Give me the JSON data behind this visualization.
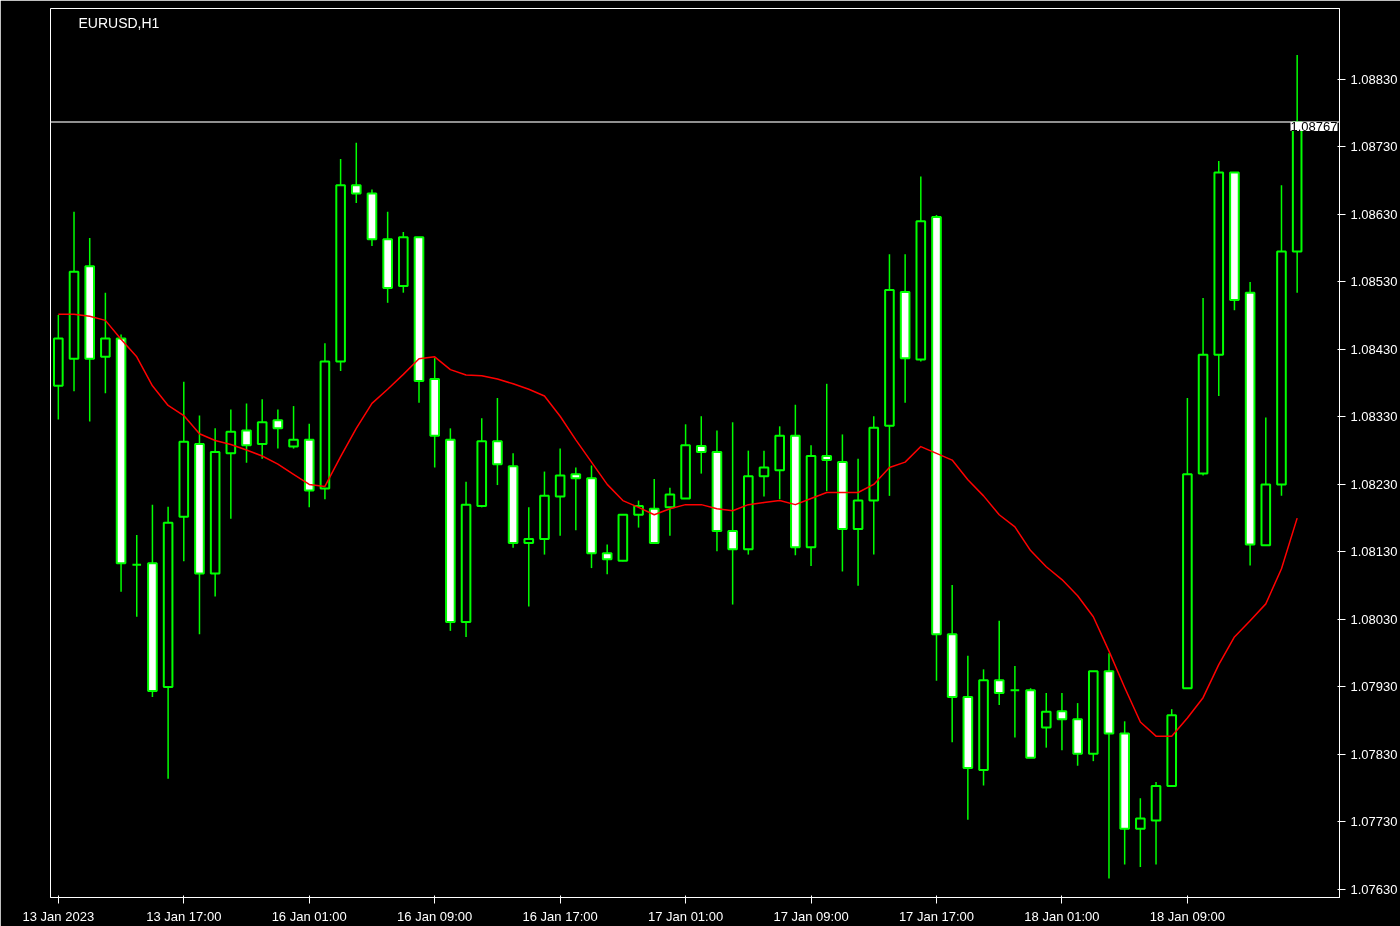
{
  "chart_data": {
    "type": "candlestick",
    "title": "EURUSD,H1",
    "categories": [
      "13 Jan 2023",
      null,
      null,
      null,
      null,
      null,
      null,
      null,
      "13 Jan 17:00",
      null,
      null,
      null,
      null,
      null,
      null,
      null,
      "16 Jan 01:00",
      null,
      null,
      null,
      null,
      null,
      null,
      null,
      "16 Jan 09:00",
      null,
      null,
      null,
      null,
      null,
      null,
      null,
      "16 Jan 17:00",
      null,
      null,
      null,
      null,
      null,
      null,
      null,
      "17 Jan 01:00",
      null,
      null,
      null,
      null,
      null,
      null,
      null,
      "17 Jan 09:00",
      null,
      null,
      null,
      null,
      null,
      null,
      null,
      "17 Jan 17:00",
      null,
      null,
      null,
      null,
      null,
      null,
      null,
      "18 Jan 01:00",
      null,
      null,
      null,
      null,
      null,
      null,
      null,
      "18 Jan 09:00",
      null,
      null,
      null,
      null,
      null,
      null,
      null
    ],
    "color": "#00ff00",
    "ohlc": [
      [
        1.08376,
        1.08481,
        1.08326,
        1.08446
      ],
      [
        1.08416,
        1.08634,
        1.08368,
        1.08545
      ],
      [
        1.08553,
        1.08595,
        1.08323,
        1.08416
      ],
      [
        1.08419,
        1.08514,
        1.08365,
        1.08446
      ],
      [
        1.08446,
        1.08452,
        1.08071,
        1.08113
      ],
      [
        1.08111,
        1.08155,
        1.08034,
        1.08111
      ],
      [
        1.08113,
        1.082,
        1.07915,
        1.07924
      ],
      [
        1.0793,
        1.08197,
        1.07794,
        1.08173
      ],
      [
        1.08182,
        1.08382,
        1.08116,
        1.08293
      ],
      [
        1.0829,
        1.08332,
        1.08008,
        1.08098
      ],
      [
        1.08098,
        1.08313,
        1.08064,
        1.08278
      ],
      [
        1.08276,
        1.08341,
        1.08179,
        1.08308
      ],
      [
        1.0831,
        1.0835,
        1.08262,
        1.08288
      ],
      [
        1.0829,
        1.08356,
        1.08268,
        1.08322
      ],
      [
        1.08325,
        1.08341,
        1.08283,
        1.08313
      ],
      [
        1.08286,
        1.08346,
        1.08283,
        1.08296
      ],
      [
        1.08296,
        1.0832,
        1.08196,
        1.08221
      ],
      [
        1.08224,
        1.08439,
        1.08208,
        1.08412
      ],
      [
        1.08412,
        1.08712,
        1.08398,
        1.08673
      ],
      [
        1.08673,
        1.08736,
        1.08647,
        1.08661
      ],
      [
        1.08661,
        1.08667,
        1.08583,
        1.08593
      ],
      [
        1.08593,
        1.08634,
        1.08499,
        1.08521
      ],
      [
        1.08524,
        1.08604,
        1.08514,
        1.08596
      ],
      [
        1.08596,
        1.08596,
        1.08351,
        1.08383
      ],
      [
        1.08386,
        1.08417,
        1.08255,
        1.08302
      ],
      [
        1.08296,
        1.08313,
        1.08013,
        1.08026
      ],
      [
        1.08026,
        1.08234,
        1.08004,
        1.082
      ],
      [
        1.08198,
        1.08328,
        1.08196,
        1.08294
      ],
      [
        1.08294,
        1.08358,
        1.08229,
        1.0826
      ],
      [
        1.08257,
        1.08276,
        1.08136,
        1.08143
      ],
      [
        1.08143,
        1.08196,
        1.08049,
        1.08149
      ],
      [
        1.08149,
        1.08249,
        1.08126,
        1.08213
      ],
      [
        1.08212,
        1.08283,
        1.08154,
        1.08243
      ],
      [
        1.08245,
        1.08255,
        1.08162,
        1.08239
      ],
      [
        1.08239,
        1.08258,
        1.08106,
        1.08128
      ],
      [
        1.08128,
        1.08141,
        1.08097,
        1.08119
      ],
      [
        1.08117,
        1.08185,
        1.08116,
        1.08185
      ],
      [
        1.08185,
        1.08206,
        1.08166,
        1.08198
      ],
      [
        1.08194,
        1.08238,
        1.08143,
        1.08143
      ],
      [
        1.08196,
        1.08225,
        1.08154,
        1.08215
      ],
      [
        1.08209,
        1.08319,
        1.08209,
        1.08288
      ],
      [
        1.08287,
        1.08331,
        1.08246,
        1.08278
      ],
      [
        1.08278,
        1.0831,
        1.08131,
        1.08161
      ],
      [
        1.08161,
        1.08322,
        1.08052,
        1.08134
      ],
      [
        1.08134,
        1.0828,
        1.08126,
        1.08242
      ],
      [
        1.08242,
        1.0828,
        1.08212,
        1.08255
      ],
      [
        1.08251,
        1.08316,
        1.08208,
        1.08302
      ],
      [
        1.08302,
        1.08348,
        1.08125,
        1.08137
      ],
      [
        1.08137,
        1.08288,
        1.08109,
        1.08272
      ],
      [
        1.08272,
        1.08379,
        1.0822,
        1.08266
      ],
      [
        1.08263,
        1.08304,
        1.08101,
        1.08164
      ],
      [
        1.08164,
        1.08268,
        1.0808,
        1.08206
      ],
      [
        1.08206,
        1.08331,
        1.08126,
        1.08314
      ],
      [
        1.08317,
        1.08571,
        1.08213,
        1.08518
      ],
      [
        1.08515,
        1.08571,
        1.08351,
        1.08417
      ],
      [
        1.08415,
        1.08686,
        1.08412,
        1.0862
      ],
      [
        1.08626,
        1.08629,
        1.07939,
        1.08008
      ],
      [
        1.08008,
        1.08081,
        1.07848,
        1.07915
      ],
      [
        1.07915,
        1.07976,
        1.07733,
        1.0781
      ],
      [
        1.07807,
        1.07956,
        1.07784,
        1.0794
      ],
      [
        1.0794,
        1.08028,
        1.07903,
        1.07921
      ],
      [
        1.07925,
        1.07961,
        1.07855,
        1.07925
      ],
      [
        1.07925,
        1.07928,
        1.07825,
        1.07825
      ],
      [
        1.0787,
        1.07921,
        1.0784,
        1.07893
      ],
      [
        1.07894,
        1.07921,
        1.07836,
        1.07882
      ],
      [
        1.07882,
        1.07906,
        1.07813,
        1.07831
      ],
      [
        1.07831,
        1.07953,
        1.0782,
        1.07953
      ],
      [
        1.07953,
        1.0798,
        1.07646,
        1.07861
      ],
      [
        1.07861,
        1.07879,
        1.07667,
        1.0772
      ],
      [
        1.0772,
        1.07765,
        1.07663,
        1.07735
      ],
      [
        1.07732,
        1.07789,
        1.07667,
        1.07783
      ],
      [
        1.07783,
        1.07897,
        1.07783,
        1.07888
      ],
      [
        1.07928,
        1.08358,
        1.07928,
        1.08245
      ],
      [
        1.08246,
        1.08506,
        1.08243,
        1.08422
      ],
      [
        1.08422,
        1.08709,
        1.08361,
        1.08692
      ],
      [
        1.08692,
        1.08692,
        1.08488,
        1.08503
      ],
      [
        1.08514,
        1.0853,
        1.0811,
        1.08141
      ],
      [
        1.0814,
        1.08329,
        1.0814,
        1.0823
      ],
      [
        1.0823,
        1.08673,
        1.08213,
        1.08575
      ],
      [
        1.08575,
        1.08866,
        1.08514,
        1.08767
      ]
    ],
    "series": [
      {
        "type": "line",
        "color": "#ff0000",
        "values": [
          1.08482,
          1.08482,
          1.08479,
          1.08473,
          1.08445,
          1.08419,
          1.08376,
          1.08347,
          1.08332,
          1.08305,
          1.08295,
          1.08289,
          1.08281,
          1.08272,
          1.0826,
          1.08245,
          1.0823,
          1.08227,
          1.08271,
          1.08313,
          1.0835,
          1.08371,
          1.08393,
          1.08416,
          1.08419,
          1.084,
          1.08392,
          1.08391,
          1.08386,
          1.08379,
          1.08371,
          1.08361,
          1.08331,
          1.08296,
          1.08263,
          1.0823,
          1.08206,
          1.08196,
          1.08185,
          1.08194,
          1.082,
          1.082,
          1.08194,
          1.08191,
          1.082,
          1.08203,
          1.08206,
          1.082,
          1.08209,
          1.08218,
          1.08218,
          1.08218,
          1.0823,
          1.08255,
          1.08263,
          1.08286,
          1.08276,
          1.08266,
          1.08237,
          1.08213,
          1.08185,
          1.08167,
          1.08132,
          1.08108,
          1.08089,
          1.08065,
          1.08034,
          1.07983,
          1.07929,
          1.07878,
          1.07857,
          1.07857,
          1.07884,
          1.07914,
          1.07963,
          1.08004,
          1.08028,
          1.08053,
          1.08105,
          1.0818
        ]
      }
    ],
    "ylim": [
      1.07618,
      1.08935
    ],
    "yticks": [
      {
        "value": 1.0763,
        "label": "1.07630"
      },
      {
        "value": 1.0773,
        "label": "1.07730"
      },
      {
        "value": 1.0783,
        "label": "1.07830"
      },
      {
        "value": 1.0793,
        "label": "1.07930"
      },
      {
        "value": 1.0803,
        "label": "1.08030"
      },
      {
        "value": 1.0813,
        "label": "1.08130"
      },
      {
        "value": 1.0823,
        "label": "1.08230"
      },
      {
        "value": 1.0833,
        "label": "1.08330"
      },
      {
        "value": 1.0843,
        "label": "1.08430"
      },
      {
        "value": 1.0853,
        "label": "1.08530"
      },
      {
        "value": 1.0863,
        "label": "1.08630"
      },
      {
        "value": 1.0873,
        "label": "1.08730"
      },
      {
        "value": 1.0883,
        "label": "1.08830"
      }
    ],
    "ref_lines": [
      {
        "axis": "y",
        "value": 1.08767,
        "label": "1.08767",
        "color": "#c0c0c0"
      }
    ],
    "grid": false
  }
}
